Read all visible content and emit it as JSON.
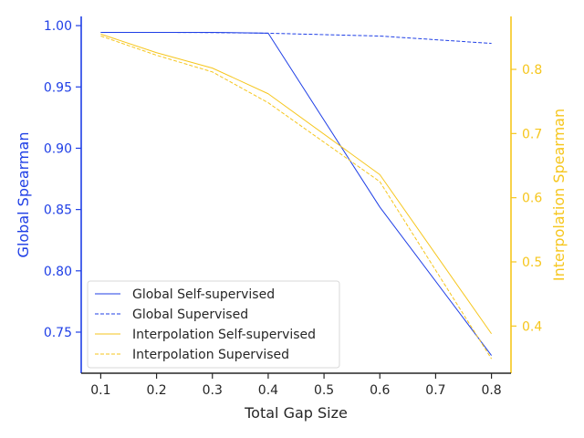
{
  "chart_data": {
    "type": "line",
    "xlabel": "Total Gap Size",
    "x_ticks": [
      "0.1",
      "0.2",
      "0.3",
      "0.4",
      "0.5",
      "0.6",
      "0.7",
      "0.8"
    ],
    "xlim": [
      0.065,
      0.835
    ],
    "left_axis": {
      "label": "Global Spearman",
      "color": "#1f3fe6",
      "ylim": [
        0.7165,
        1.0075
      ],
      "ticks": [
        "0.75",
        "0.80",
        "0.85",
        "0.90",
        "0.95",
        "1.00"
      ]
    },
    "right_axis": {
      "label": "Interpolation Spearman",
      "color": "#f6c61d",
      "ylim": [
        0.3265,
        0.8825
      ],
      "ticks": [
        "0.4",
        "0.5",
        "0.6",
        "0.7",
        "0.8"
      ]
    },
    "series": [
      {
        "name": "Global Self-supervised",
        "axis": "left",
        "style": "solid",
        "color": "#1f3fe6",
        "x": [
          0.1,
          0.2,
          0.3,
          0.4,
          0.6,
          0.8
        ],
        "y": [
          0.9945,
          0.9945,
          0.9945,
          0.9938,
          0.852,
          0.731
        ]
      },
      {
        "name": "Global Supervised",
        "axis": "left",
        "style": "dashed",
        "color": "#1f3fe6",
        "x": [
          0.1,
          0.2,
          0.3,
          0.4,
          0.6,
          0.8
        ],
        "y": [
          0.9945,
          0.9945,
          0.9943,
          0.9938,
          0.9915,
          0.9855
        ]
      },
      {
        "name": "Interpolation Self-supervised",
        "axis": "right",
        "style": "solid",
        "color": "#f6c61d",
        "x": [
          0.1,
          0.2,
          0.3,
          0.4,
          0.6,
          0.8
        ],
        "y": [
          0.855,
          0.826,
          0.802,
          0.762,
          0.636,
          0.388
        ]
      },
      {
        "name": "Interpolation Supervised",
        "axis": "right",
        "style": "dashed",
        "color": "#f6c61d",
        "x": [
          0.1,
          0.2,
          0.3,
          0.4,
          0.6,
          0.8
        ],
        "y": [
          0.852,
          0.822,
          0.796,
          0.748,
          0.625,
          0.349
        ]
      }
    ],
    "legend_position": "lower-left",
    "grid": false
  }
}
